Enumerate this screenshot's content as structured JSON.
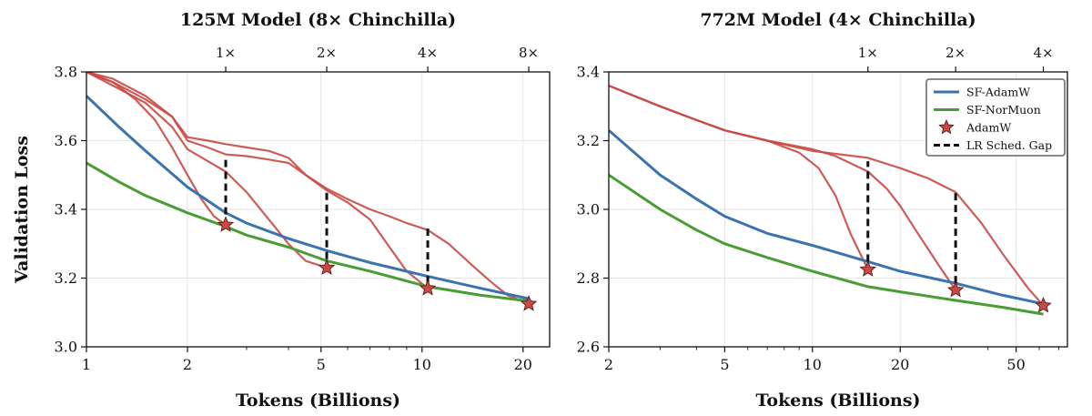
{
  "colors": {
    "sf_adamw": "#3a73b0",
    "sf_normuon": "#4a9c35",
    "adamw": "#c94a44",
    "gap": "#111111",
    "grid": "#e6e6e6"
  },
  "shared": {
    "ylabel": "Validation Loss",
    "xlabel": "Tokens (Billions)",
    "legend": {
      "sf_adamw": "SF-AdamW",
      "sf_normuon": "SF-NorMuon",
      "adamw": "AdamW",
      "gap": "LR Sched. Gap"
    }
  },
  "chart_data": [
    {
      "type": "line",
      "title": "125M Model (8× Chinchilla)",
      "xscale": "log",
      "xlim": [
        1,
        24
      ],
      "ylim": [
        3.0,
        3.8
      ],
      "xticks": [
        1,
        2,
        5,
        10,
        20
      ],
      "xtick_labels": [
        "1",
        "2",
        "5",
        "10",
        "20"
      ],
      "yticks": [
        3.0,
        3.2,
        3.4,
        3.6,
        3.8
      ],
      "ytick_labels": [
        "3.0",
        "3.2",
        "3.4",
        "3.6",
        "3.8"
      ],
      "top_ticks": [
        2.6,
        5.2,
        10.4,
        20.8
      ],
      "top_tick_labels": [
        "1×",
        "2×",
        "4×",
        "8×"
      ],
      "grid": true,
      "series": [
        {
          "name": "SF-AdamW",
          "key": "sf_adamw",
          "x": [
            1,
            1.25,
            1.5,
            2,
            2.6,
            3,
            4,
            5.2,
            7,
            10.4,
            15,
            20.8
          ],
          "y": [
            3.73,
            3.64,
            3.57,
            3.465,
            3.39,
            3.36,
            3.315,
            3.28,
            3.245,
            3.205,
            3.17,
            3.14
          ]
        },
        {
          "name": "SF-NorMuon",
          "key": "sf_normuon",
          "x": [
            1,
            1.25,
            1.5,
            2,
            2.6,
            3,
            4,
            5.2,
            7,
            10.4,
            15,
            20.8
          ],
          "y": [
            3.535,
            3.48,
            3.44,
            3.39,
            3.35,
            3.325,
            3.29,
            3.25,
            3.22,
            3.175,
            3.15,
            3.133
          ]
        },
        {
          "name": "AdamW runs",
          "key": "adamw",
          "runs": [
            {
              "x": [
                1,
                1.2,
                1.4,
                1.6,
                1.8,
                2.0,
                2.2,
                2.4,
                2.6
              ],
              "y": [
                3.8,
                3.77,
                3.72,
                3.66,
                3.58,
                3.5,
                3.43,
                3.38,
                3.355
              ]
            },
            {
              "x": [
                1,
                1.2,
                1.5,
                1.8,
                2.0,
                2.3,
                2.6,
                3.0,
                3.5,
                4.0,
                4.5,
                5.2
              ],
              "y": [
                3.8,
                3.76,
                3.71,
                3.64,
                3.575,
                3.54,
                3.51,
                3.45,
                3.37,
                3.3,
                3.25,
                3.23
              ]
            },
            {
              "x": [
                1,
                1.2,
                1.5,
                1.8,
                2.0,
                2.3,
                2.6,
                3.0,
                3.5,
                4.0,
                4.5,
                5.2,
                6.0,
                7.0,
                8.0,
                9.0,
                10.4
              ],
              "y": [
                3.8,
                3.77,
                3.72,
                3.67,
                3.6,
                3.58,
                3.56,
                3.555,
                3.545,
                3.535,
                3.5,
                3.455,
                3.42,
                3.37,
                3.29,
                3.22,
                3.17
              ]
            },
            {
              "x": [
                1,
                1.2,
                1.5,
                1.8,
                2.0,
                2.3,
                2.6,
                3.0,
                3.5,
                4.0,
                4.5,
                5.2,
                6.0,
                7.0,
                8.0,
                9.0,
                10.4,
                12.0,
                14.0,
                16.0,
                18.0,
                20.8
              ],
              "y": [
                3.8,
                3.78,
                3.73,
                3.67,
                3.61,
                3.6,
                3.59,
                3.58,
                3.57,
                3.55,
                3.5,
                3.46,
                3.43,
                3.4,
                3.38,
                3.36,
                3.34,
                3.3,
                3.24,
                3.19,
                3.15,
                3.125
              ]
            }
          ]
        }
      ],
      "markers": {
        "x": [
          2.6,
          5.2,
          10.4,
          20.8
        ],
        "y": [
          3.355,
          3.23,
          3.17,
          3.125
        ]
      },
      "gaps": [
        {
          "x": 2.6,
          "y1": 3.385,
          "y2": 3.545
        },
        {
          "x": 5.2,
          "y1": 3.255,
          "y2": 3.455
        },
        {
          "x": 10.4,
          "y1": 3.185,
          "y2": 3.345
        }
      ],
      "legend": false
    },
    {
      "type": "line",
      "title": "772M Model (4× Chinchilla)",
      "xscale": "log",
      "xlim": [
        2,
        75
      ],
      "ylim": [
        2.6,
        3.4
      ],
      "xticks": [
        2,
        5,
        10,
        20,
        50
      ],
      "xtick_labels": [
        "2",
        "5",
        "10",
        "20",
        "50"
      ],
      "yticks": [
        2.6,
        2.8,
        3.0,
        3.2,
        3.4
      ],
      "ytick_labels": [
        "2.6",
        "2.8",
        "3.0",
        "3.2",
        "3.4"
      ],
      "top_ticks": [
        15.5,
        31,
        62
      ],
      "top_tick_labels": [
        "1×",
        "2×",
        "4×"
      ],
      "grid": true,
      "series": [
        {
          "name": "SF-AdamW",
          "key": "sf_adamw",
          "x": [
            2,
            3,
            4,
            5,
            7,
            10,
            15.5,
            20,
            31,
            45,
            62
          ],
          "y": [
            3.23,
            3.1,
            3.03,
            2.98,
            2.93,
            2.895,
            2.848,
            2.82,
            2.785,
            2.75,
            2.725
          ]
        },
        {
          "name": "SF-NorMuon",
          "key": "sf_normuon",
          "x": [
            2,
            3,
            4,
            5,
            7,
            10,
            15.5,
            20,
            31,
            45,
            62
          ],
          "y": [
            3.1,
            3.0,
            2.94,
            2.9,
            2.86,
            2.82,
            2.775,
            2.76,
            2.735,
            2.715,
            2.695
          ]
        },
        {
          "name": "AdamW runs",
          "key": "adamw",
          "runs": [
            {
              "x": [
                2,
                3,
                4,
                5,
                7,
                9,
                10.5,
                12,
                13.5,
                15.5
              ],
              "y": [
                3.36,
                3.3,
                3.26,
                3.23,
                3.2,
                3.165,
                3.12,
                3.04,
                2.93,
                2.825
              ]
            },
            {
              "x": [
                2,
                3,
                4,
                5,
                7,
                10,
                12,
                15.5,
                18,
                20,
                23,
                27,
                31
              ],
              "y": [
                3.36,
                3.3,
                3.26,
                3.23,
                3.2,
                3.175,
                3.155,
                3.11,
                3.06,
                3.01,
                2.93,
                2.84,
                2.765
              ]
            },
            {
              "x": [
                2,
                3,
                4,
                5,
                7,
                10,
                15.5,
                20,
                25,
                31,
                38,
                45,
                55,
                62
              ],
              "y": [
                3.36,
                3.3,
                3.26,
                3.23,
                3.2,
                3.17,
                3.15,
                3.12,
                3.09,
                3.05,
                2.96,
                2.87,
                2.77,
                2.72
              ]
            }
          ]
        }
      ],
      "markers": {
        "x": [
          15.5,
          31,
          62
        ],
        "y": [
          2.825,
          2.765,
          2.72
        ]
      },
      "gaps": [
        {
          "x": 15.5,
          "y1": 2.848,
          "y2": 3.14
        },
        {
          "x": 31,
          "y1": 2.785,
          "y2": 3.05
        }
      ],
      "legend": true,
      "legend_position": "top-right"
    }
  ]
}
